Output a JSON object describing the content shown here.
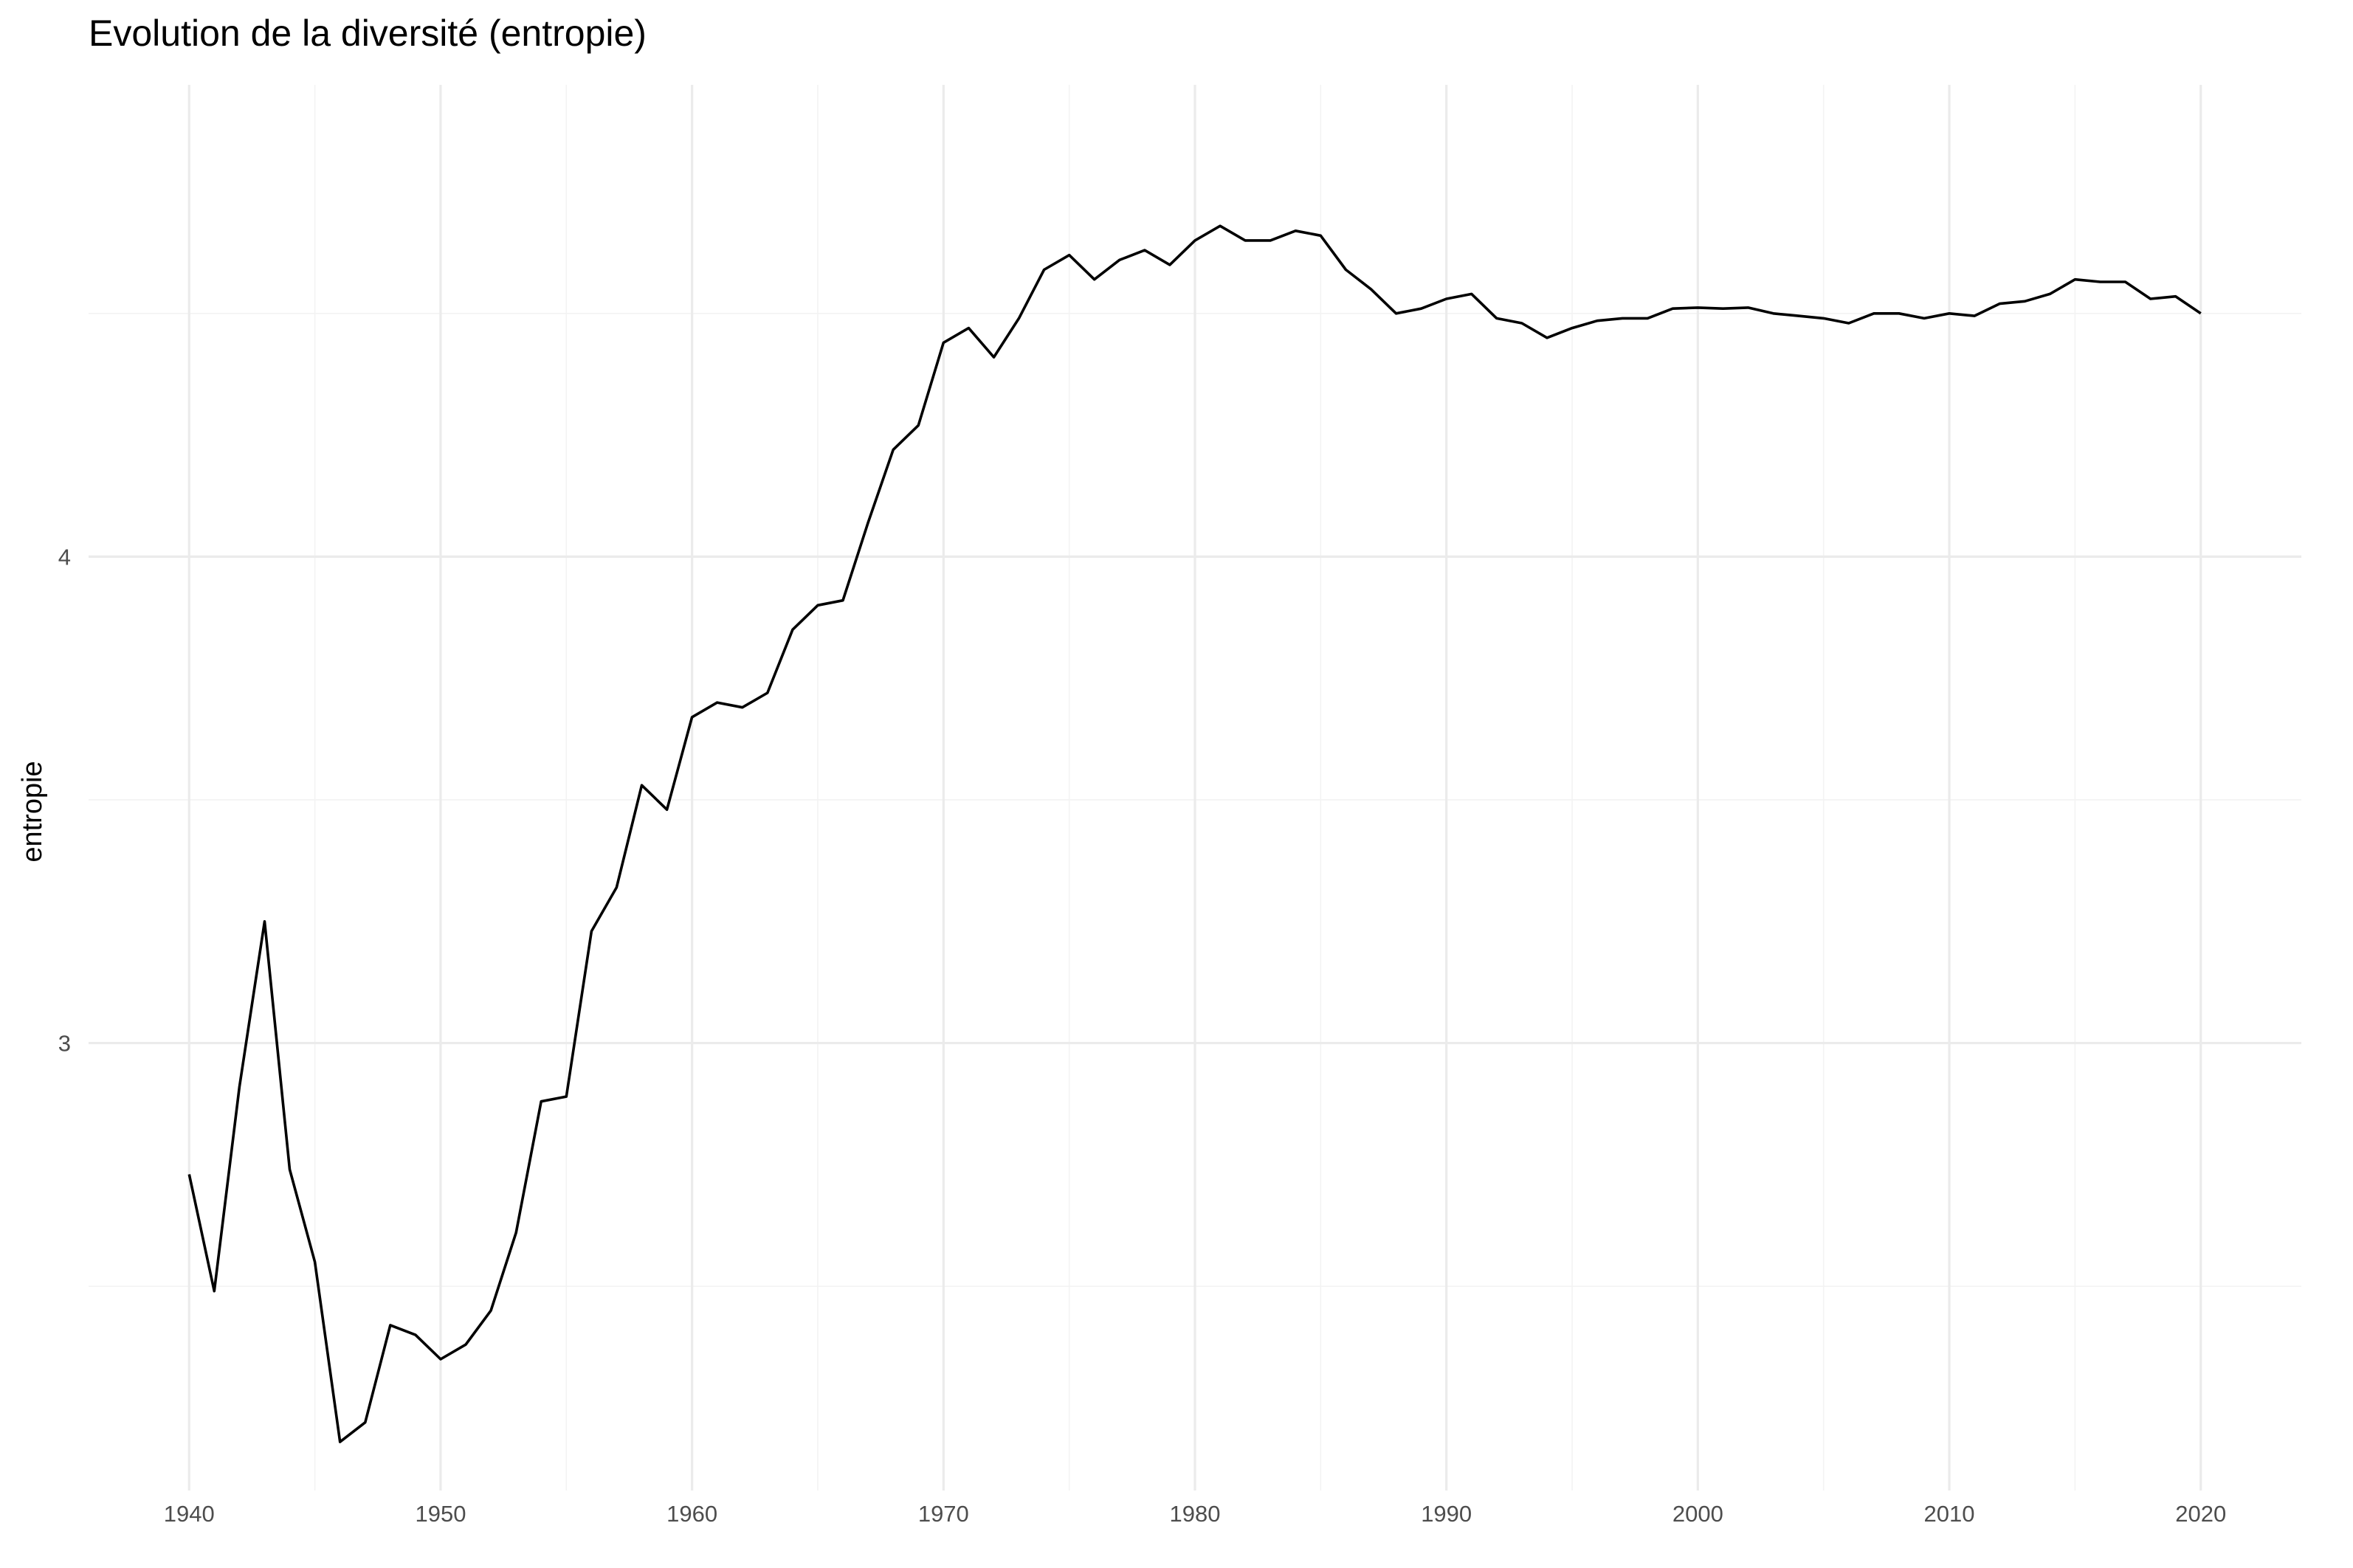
{
  "chart_data": {
    "type": "line",
    "title": "Evolution de la diversité (entropie)",
    "xlabel": "",
    "ylabel": "entropie",
    "xlim": [
      1936,
      2024
    ],
    "ylim": [
      2.08,
      4.97
    ],
    "x_ticks": [
      1940,
      1950,
      1960,
      1970,
      1980,
      1990,
      2000,
      2010,
      2020
    ],
    "y_ticks": [
      3,
      4
    ],
    "x_minor_ticks": [
      1945,
      1955,
      1965,
      1975,
      1985,
      1995,
      2005,
      2015
    ],
    "y_minor_ticks": [
      2.5,
      3.5,
      4.5
    ],
    "grid": true,
    "legend": "none",
    "colors": {
      "line": "#000000",
      "grid_major": "#ebebeb",
      "grid_minor": "#f3f3f3",
      "tick_text": "#4d4d4d"
    },
    "series": [
      {
        "x": [
          1940,
          1941,
          1942,
          1943,
          1944,
          1945,
          1946,
          1947,
          1948,
          1949,
          1950,
          1951,
          1952,
          1953,
          1954,
          1955,
          1956,
          1957,
          1958,
          1959,
          1960,
          1961,
          1962,
          1963,
          1964,
          1965,
          1966,
          1967,
          1968,
          1969,
          1970,
          1971,
          1972,
          1973,
          1974,
          1975,
          1976,
          1977,
          1978,
          1979,
          1980,
          1981,
          1982,
          1983,
          1984,
          1985,
          1986,
          1987,
          1988,
          1989,
          1990,
          1991,
          1992,
          1993,
          1994,
          1995,
          1996,
          1997,
          1998,
          1999,
          2000,
          2001,
          2002,
          2003,
          2004,
          2005,
          2006,
          2007,
          2008,
          2009,
          2010,
          2011,
          2012,
          2013,
          2014,
          2015,
          2016,
          2017,
          2018,
          2019,
          2020
        ],
        "values": [
          2.73,
          2.49,
          2.91,
          3.25,
          2.74,
          2.55,
          2.18,
          2.22,
          2.42,
          2.4,
          2.35,
          2.38,
          2.45,
          2.61,
          2.88,
          2.89,
          3.23,
          3.32,
          3.53,
          3.48,
          3.67,
          3.7,
          3.69,
          3.72,
          3.85,
          3.9,
          3.91,
          4.07,
          4.22,
          4.27,
          4.44,
          4.47,
          4.41,
          4.49,
          4.59,
          4.62,
          4.57,
          4.61,
          4.63,
          4.6,
          4.65,
          4.68,
          4.65,
          4.65,
          4.67,
          4.66,
          4.59,
          4.55,
          4.5,
          4.51,
          4.53,
          4.54,
          4.49,
          4.48,
          4.45,
          4.47,
          4.485,
          4.49,
          4.49,
          4.51,
          4.512,
          4.51,
          4.512,
          4.5,
          4.495,
          4.49,
          4.48,
          4.5,
          4.5,
          4.49,
          4.5,
          4.495,
          4.52,
          4.525,
          4.54,
          4.57,
          4.565,
          4.565,
          4.53,
          4.535,
          4.5
        ]
      }
    ]
  }
}
